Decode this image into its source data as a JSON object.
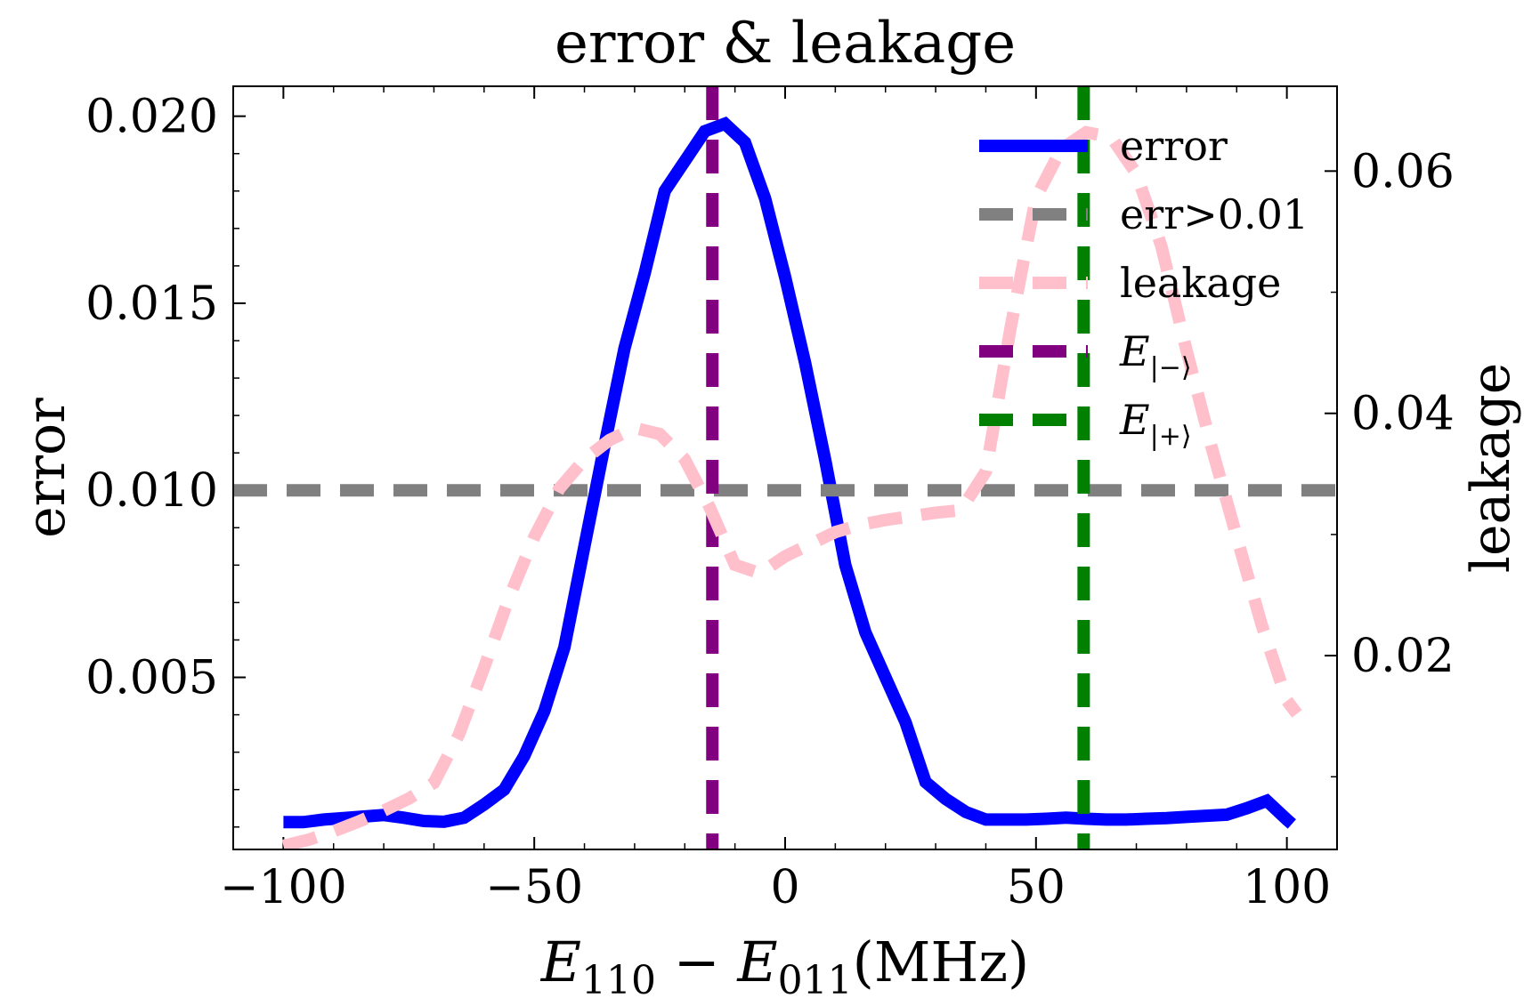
{
  "chart_data": {
    "type": "line",
    "title": "error & leakage",
    "xlabel": {
      "main1": "E",
      "sub1": "110",
      "op": " − ",
      "main2": "E",
      "sub2": "011",
      "unit": "(MHz)"
    },
    "ylabel_left": "error",
    "ylabel_right": "leakage",
    "xlim": [
      -110,
      110
    ],
    "ylim_left": [
      0.0004,
      0.0208
    ],
    "ylim_right": [
      0.004,
      0.067
    ],
    "x_ticks": [
      -100,
      -50,
      0,
      50,
      100
    ],
    "x_tick_labels": [
      "−100",
      "−50",
      "0",
      "50",
      "100"
    ],
    "y_left_ticks": [
      0.005,
      0.01,
      0.015,
      0.02
    ],
    "y_left_tick_labels": [
      "0.005",
      "0.010",
      "0.015",
      "0.020"
    ],
    "y_right_ticks": [
      0.02,
      0.04,
      0.06
    ],
    "y_right_tick_labels": [
      "0.02",
      "0.04",
      "0.06"
    ],
    "series": [
      {
        "name": "error",
        "axis": "left",
        "color": "#0000ff",
        "style": "solid",
        "points": [
          [
            -100,
            0.00113
          ],
          [
            -96,
            0.00113
          ],
          [
            -92,
            0.0012
          ],
          [
            -88,
            0.00124
          ],
          [
            -84,
            0.00128
          ],
          [
            -80,
            0.00132
          ],
          [
            -76,
            0.00125
          ],
          [
            -72,
            0.00116
          ],
          [
            -68,
            0.00114
          ],
          [
            -64,
            0.00125
          ],
          [
            -60,
            0.0016
          ],
          [
            -56,
            0.002
          ],
          [
            -52,
            0.0029
          ],
          [
            -48,
            0.0041
          ],
          [
            -44,
            0.0058
          ],
          [
            -40,
            0.0085
          ],
          [
            -36,
            0.0112
          ],
          [
            -32,
            0.0138
          ],
          [
            -28,
            0.0158
          ],
          [
            -24,
            0.018
          ],
          [
            -20,
            0.0188
          ],
          [
            -16,
            0.0196
          ],
          [
            -12,
            0.0198
          ],
          [
            -8,
            0.0193
          ],
          [
            -4,
            0.0178
          ],
          [
            0,
            0.0157
          ],
          [
            4,
            0.0134
          ],
          [
            8,
            0.0108
          ],
          [
            12,
            0.008
          ],
          [
            16,
            0.0062
          ],
          [
            20,
            0.005
          ],
          [
            24,
            0.0038
          ],
          [
            28,
            0.0022
          ],
          [
            32,
            0.00175
          ],
          [
            36,
            0.0014
          ],
          [
            40,
            0.0012
          ],
          [
            44,
            0.0012
          ],
          [
            48,
            0.0012
          ],
          [
            52,
            0.00122
          ],
          [
            56,
            0.00125
          ],
          [
            60,
            0.00122
          ],
          [
            64,
            0.0012
          ],
          [
            68,
            0.0012
          ],
          [
            72,
            0.00122
          ],
          [
            76,
            0.00124
          ],
          [
            80,
            0.00127
          ],
          [
            84,
            0.0013
          ],
          [
            88,
            0.00133
          ],
          [
            92,
            0.0015
          ],
          [
            96,
            0.0017
          ],
          [
            100,
            0.0012
          ],
          [
            101,
            0.00108
          ]
        ]
      },
      {
        "name": "leakage",
        "axis": "right",
        "color": "#ffc0cb",
        "style": "dashed",
        "points": [
          [
            -100,
            0.0043
          ],
          [
            -95,
            0.0048
          ],
          [
            -90,
            0.0055
          ],
          [
            -85,
            0.0063
          ],
          [
            -80,
            0.0072
          ],
          [
            -75,
            0.0082
          ],
          [
            -70,
            0.0095
          ],
          [
            -65,
            0.0135
          ],
          [
            -60,
            0.019
          ],
          [
            -55,
            0.0248
          ],
          [
            -50,
            0.0298
          ],
          [
            -45,
            0.0338
          ],
          [
            -40,
            0.0362
          ],
          [
            -35,
            0.0378
          ],
          [
            -30,
            0.0388
          ],
          [
            -25,
            0.0383
          ],
          [
            -20,
            0.0362
          ],
          [
            -15,
            0.0322
          ],
          [
            -10,
            0.0275
          ],
          [
            -5,
            0.0268
          ],
          [
            0,
            0.0282
          ],
          [
            5,
            0.0292
          ],
          [
            10,
            0.0302
          ],
          [
            15,
            0.0308
          ],
          [
            20,
            0.0312
          ],
          [
            25,
            0.0315
          ],
          [
            30,
            0.0318
          ],
          [
            35,
            0.032
          ],
          [
            40,
            0.0352
          ],
          [
            45,
            0.0472
          ],
          [
            50,
            0.0578
          ],
          [
            55,
            0.0618
          ],
          [
            60,
            0.0632
          ],
          [
            65,
            0.0628
          ],
          [
            70,
            0.0598
          ],
          [
            75,
            0.0538
          ],
          [
            80,
            0.0452
          ],
          [
            85,
            0.0372
          ],
          [
            90,
            0.0298
          ],
          [
            95,
            0.0225
          ],
          [
            100,
            0.0163
          ],
          [
            102,
            0.0152
          ]
        ]
      }
    ],
    "hlines": [
      {
        "name": "err>0.01",
        "axis": "left",
        "y": 0.01,
        "color": "#808080",
        "style": "dashed"
      }
    ],
    "vlines": [
      {
        "name": "E|−⟩",
        "x": -14.5,
        "color": "#800080",
        "style": "dashed"
      },
      {
        "name": "E|+⟩",
        "x": 59.5,
        "color": "#008000",
        "style": "dashed"
      }
    ],
    "legend": {
      "position": "top-right",
      "entries": [
        {
          "label": "error",
          "color": "#0000ff",
          "style": "solid"
        },
        {
          "label": "err>0.01",
          "color": "#808080",
          "style": "dashed"
        },
        {
          "label": "leakage",
          "color": "#ffc0cb",
          "style": "dashed"
        },
        {
          "label": "E",
          "sub": "|−⟩",
          "color": "#800080",
          "style": "dashed"
        },
        {
          "label": "E",
          "sub": "|+⟩",
          "color": "#008000",
          "style": "dashed"
        }
      ]
    }
  }
}
